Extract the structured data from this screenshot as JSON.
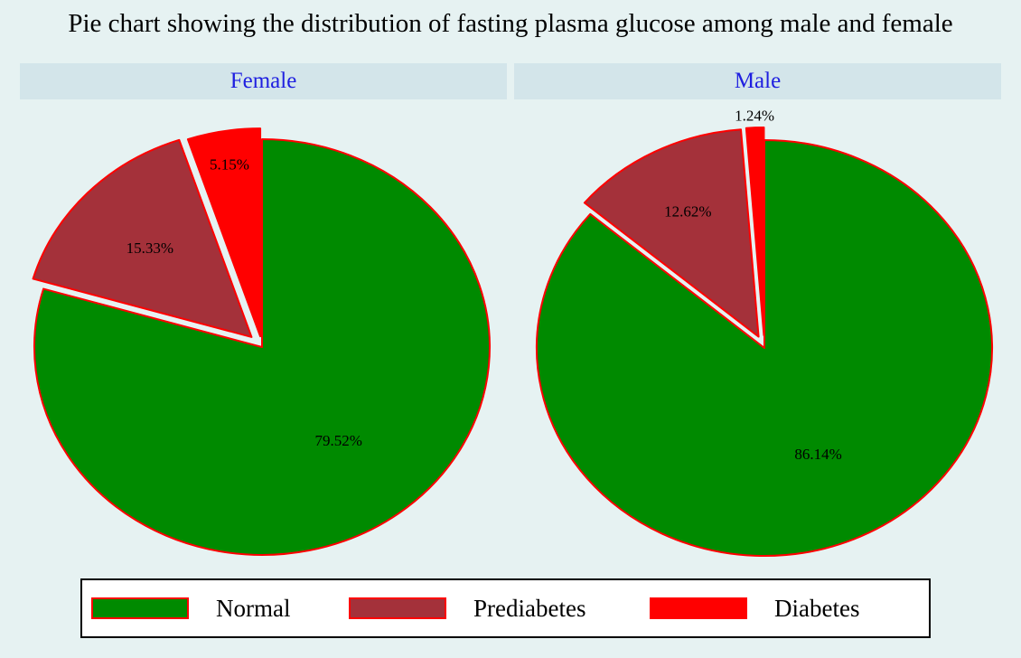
{
  "chart_data": {
    "type": "pie",
    "title": "Pie chart showing the distribution of fasting plasma glucose among male and female",
    "legend_position": "bottom",
    "categories": [
      "Normal",
      "Prediabetes",
      "Diabetes"
    ],
    "colors": {
      "Normal": "#008a00",
      "Prediabetes": "#a4313a",
      "Diabetes": "#ff0000",
      "slice_border": "#ff0000"
    },
    "panels": [
      {
        "name": "Female",
        "values": [
          79.52,
          15.33,
          5.15
        ],
        "labels": [
          "79.52%",
          "15.33%",
          "5.15%"
        ]
      },
      {
        "name": "Male",
        "values": [
          86.14,
          12.62,
          1.24
        ],
        "labels": [
          "86.14%",
          "12.62%",
          "1.24%"
        ]
      }
    ]
  }
}
